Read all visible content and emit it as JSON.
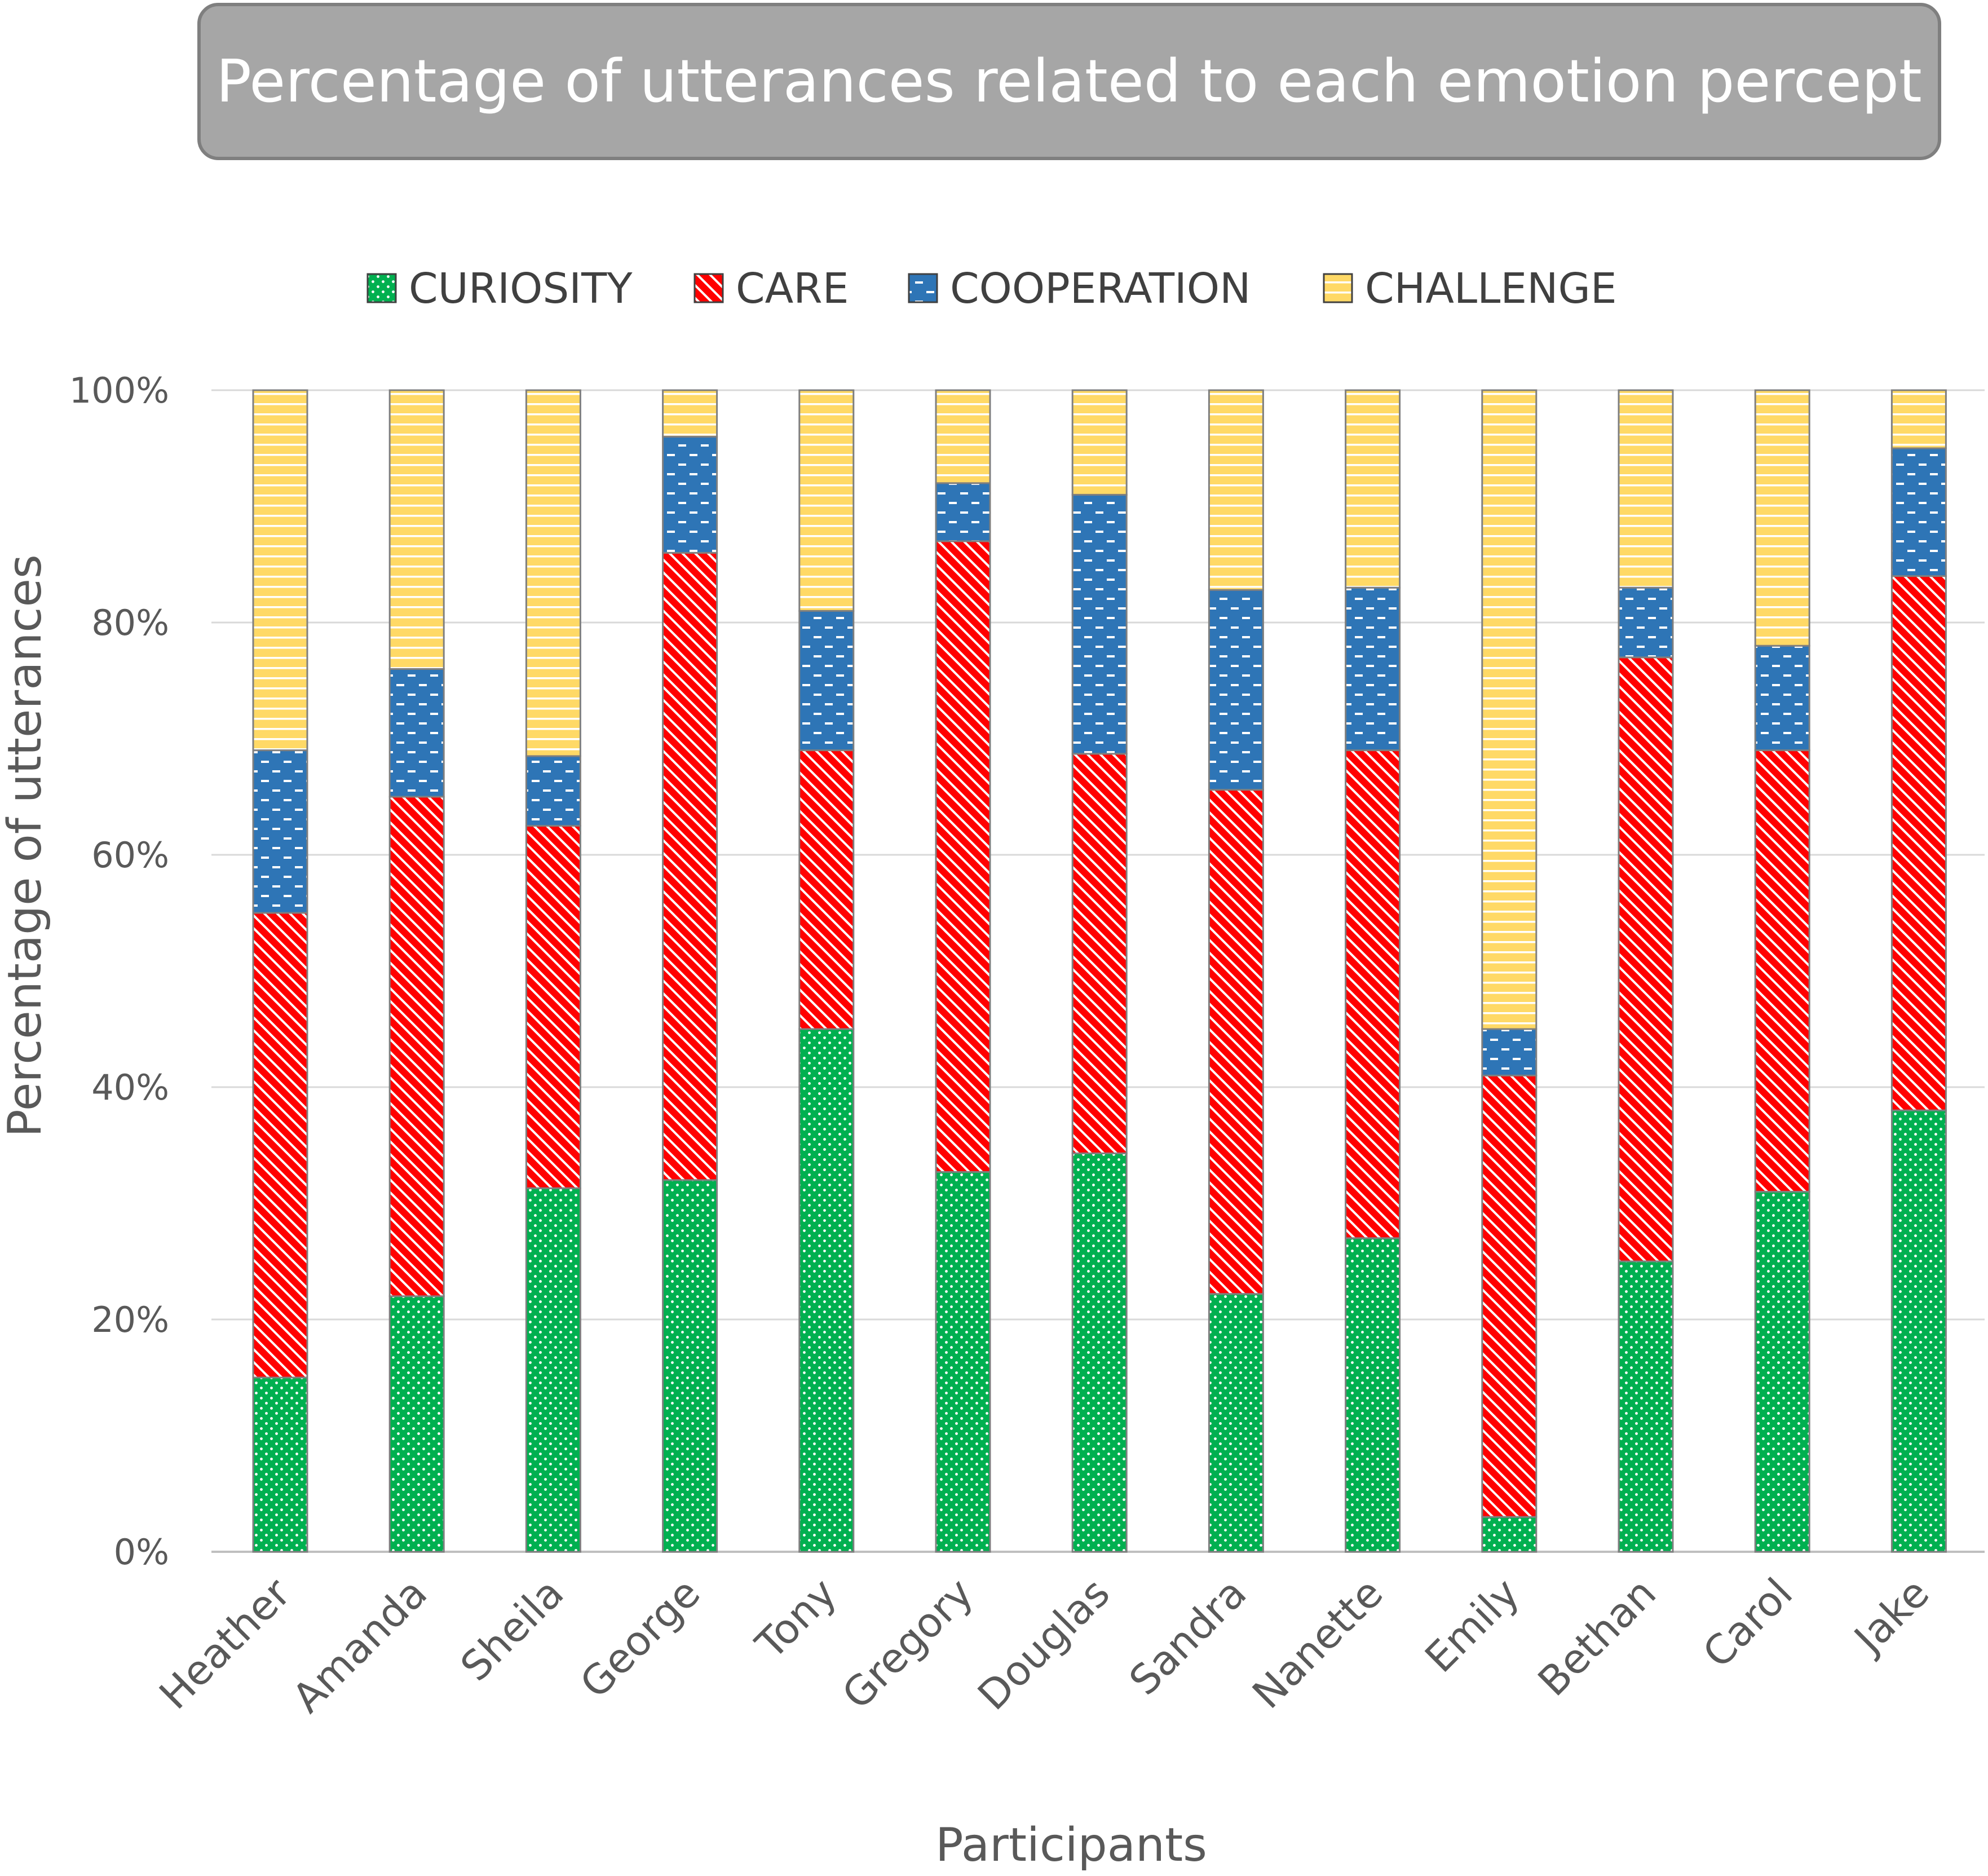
{
  "chart_data": {
    "type": "bar",
    "stacked": true,
    "title": "Percentage of utterances related to each emotion percept",
    "xlabel": "Participants",
    "ylabel": "Percentage of utterances",
    "ylim": [
      0,
      100
    ],
    "yticks": [
      0,
      20,
      40,
      60,
      80,
      100
    ],
    "ytick_labels": [
      "0%",
      "20%",
      "40%",
      "60%",
      "80%",
      "100%"
    ],
    "grid": true,
    "legend_position": "top",
    "categories": [
      "Heather",
      "Amanda",
      "Sheila",
      "George",
      "Tony",
      "Gregory",
      "Douglas",
      "Sandra",
      "Nanette",
      "Emily",
      "Bethan",
      "Carol",
      "Jake"
    ],
    "series": [
      {
        "name": "CURIOSITY",
        "color": "#00b050",
        "pattern": "dots",
        "values": [
          15,
          22,
          31.3,
          32,
          45,
          32.7,
          34.3,
          22.2,
          27,
          3,
          25,
          31,
          38
        ]
      },
      {
        "name": "CARE",
        "color": "#ff0000",
        "pattern": "diagonal",
        "values": [
          40,
          43,
          31.2,
          54,
          24,
          54.3,
          34.4,
          43.4,
          42,
          38,
          52,
          38,
          46
        ]
      },
      {
        "name": "COOPERATION",
        "color": "#2e75b6",
        "pattern": "dashes",
        "values": [
          14,
          11,
          6,
          10,
          12,
          5,
          22.3,
          17.2,
          14,
          4,
          6,
          9,
          11
        ]
      },
      {
        "name": "CHALLENGE",
        "color": "#ffd966",
        "pattern": "hlines",
        "values": [
          31,
          24,
          31.5,
          4,
          19,
          8,
          9,
          17.2,
          17,
          55,
          17,
          22,
          5
        ]
      }
    ]
  }
}
